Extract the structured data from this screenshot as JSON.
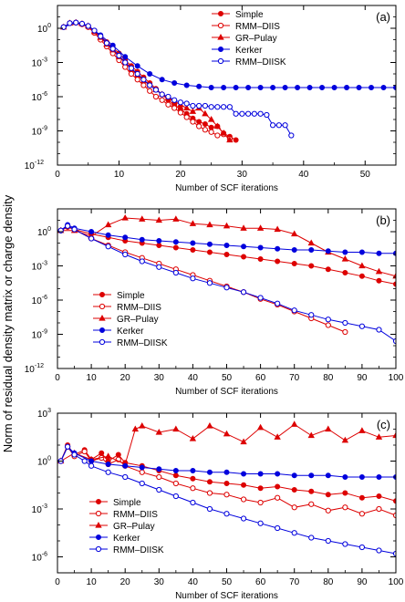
{
  "figure": {
    "shared_ylabel": "Norm of residual density matrix or charge density"
  },
  "chart_data": [
    {
      "type": "line",
      "panel_label": "(a)",
      "xlabel": "Number of SCF iterations",
      "ylabel": "",
      "xlim": [
        0,
        55
      ],
      "ylim_log10": [
        -12,
        2
      ],
      "y_scale": "log",
      "x_ticks": [
        0,
        10,
        20,
        30,
        40,
        50
      ],
      "y_ticks": [
        {
          "exp": 0,
          "label": "10",
          "sup": "0"
        },
        {
          "exp": -3,
          "label": "10",
          "sup": "-3"
        },
        {
          "exp": -6,
          "label": "10",
          "sup": "-6"
        },
        {
          "exp": -9,
          "label": "10",
          "sup": "-9"
        },
        {
          "exp": -12,
          "label": "10",
          "sup": "-12"
        }
      ],
      "legend_position": "top-center",
      "series": [
        {
          "name": "Simple",
          "color": "#dd0000",
          "marker": "filled-circle",
          "x": [
            1,
            2,
            3,
            4,
            5,
            6,
            7,
            8,
            9,
            10,
            11,
            12,
            13,
            14,
            15,
            16,
            17,
            18,
            19,
            20,
            21,
            22,
            23,
            24,
            25,
            26,
            27,
            28,
            29
          ],
          "log10y": [
            0.1,
            0.45,
            0.5,
            0.4,
            0.2,
            -0.2,
            -0.7,
            -1.2,
            -1.7,
            -2.2,
            -2.8,
            -3.3,
            -3.8,
            -4.3,
            -4.8,
            -5.3,
            -5.8,
            -6.3,
            -6.7,
            -7.1,
            -7.5,
            -7.9,
            -8.2,
            -8.4,
            -8.7,
            -8.6,
            -9.2,
            -9.5,
            -9.8
          ]
        },
        {
          "name": "RMM–DIIS",
          "color": "#dd0000",
          "marker": "open-circle",
          "x": [
            1,
            2,
            3,
            4,
            5,
            6,
            7,
            8,
            9,
            10,
            11,
            12,
            13,
            14,
            15,
            16,
            17,
            18,
            19,
            20,
            21,
            22,
            23,
            24,
            25,
            26,
            27,
            28
          ],
          "log10y": [
            0.1,
            0.45,
            0.5,
            0.35,
            0.1,
            -0.4,
            -1.0,
            -1.6,
            -2.2,
            -2.8,
            -3.4,
            -4.0,
            -4.5,
            -5.0,
            -5.5,
            -6.0,
            -6.3,
            -6.7,
            -7.0,
            -7.4,
            -7.8,
            -8.2,
            -8.6,
            -8.9,
            -9.1,
            -9.4,
            -9.3,
            -9.7
          ]
        },
        {
          "name": "GR–Pulay",
          "color": "#dd0000",
          "marker": "filled-triangle",
          "x": [
            1,
            2,
            3,
            4,
            5,
            6,
            7,
            8,
            9,
            10,
            11,
            12,
            13,
            14,
            15,
            16,
            17,
            18,
            19,
            20,
            21,
            22,
            23,
            24,
            25,
            26,
            27,
            28
          ],
          "log10y": [
            0.1,
            0.45,
            0.5,
            0.4,
            0.2,
            -0.3,
            -0.8,
            -1.4,
            -1.9,
            -2.5,
            -3.0,
            -3.6,
            -4.1,
            -4.6,
            -5.0,
            -5.4,
            -5.8,
            -6.1,
            -6.4,
            -6.7,
            -7.0,
            -7.3,
            -7.0,
            -7.5,
            -8.0,
            -8.6,
            -9.2,
            -9.8
          ]
        },
        {
          "name": "Kerker",
          "color": "#0000dd",
          "marker": "filled-circle",
          "x": [
            1,
            3,
            5,
            7,
            9,
            11,
            13,
            15,
            17,
            19,
            21,
            23,
            25,
            27,
            29,
            31,
            33,
            35,
            37,
            39,
            41,
            43,
            45,
            47,
            49,
            51,
            53,
            55
          ],
          "log10y": [
            0.1,
            0.5,
            0.2,
            -0.6,
            -1.5,
            -2.5,
            -3.3,
            -4.0,
            -4.5,
            -4.8,
            -5.0,
            -5.1,
            -5.2,
            -5.2,
            -5.2,
            -5.2,
            -5.2,
            -5.2,
            -5.2,
            -5.2,
            -5.2,
            -5.2,
            -5.2,
            -5.2,
            -5.2,
            -5.2,
            -5.2,
            -5.2
          ]
        },
        {
          "name": "RMM–DIISK",
          "color": "#0000dd",
          "marker": "open-circle",
          "x": [
            1,
            2,
            3,
            4,
            5,
            6,
            7,
            8,
            9,
            10,
            11,
            12,
            13,
            14,
            15,
            16,
            17,
            18,
            19,
            20,
            21,
            22,
            23,
            24,
            25,
            26,
            27,
            28,
            29,
            30,
            31,
            32,
            33,
            34,
            35,
            36,
            37,
            38
          ],
          "log10y": [
            0.1,
            0.45,
            0.5,
            0.4,
            0.2,
            -0.2,
            -0.7,
            -1.3,
            -1.8,
            -2.4,
            -3.0,
            -3.5,
            -4.0,
            -4.5,
            -5.0,
            -5.4,
            -5.8,
            -6.0,
            -6.3,
            -6.5,
            -6.6,
            -6.8,
            -6.8,
            -6.8,
            -6.9,
            -6.9,
            -6.9,
            -6.9,
            -7.5,
            -7.5,
            -7.5,
            -7.5,
            -7.5,
            -7.6,
            -8.5,
            -8.5,
            -8.5,
            -9.4
          ]
        }
      ]
    },
    {
      "type": "line",
      "panel_label": "(b)",
      "xlabel": "Number of SCF iterations",
      "ylabel": "",
      "xlim": [
        0,
        100
      ],
      "ylim_log10": [
        -12,
        2
      ],
      "y_scale": "log",
      "x_ticks": [
        0,
        10,
        20,
        30,
        40,
        50,
        60,
        70,
        80,
        90,
        100
      ],
      "y_ticks": [
        {
          "exp": 0,
          "label": "10",
          "sup": "0"
        },
        {
          "exp": -3,
          "label": "10",
          "sup": "-3"
        },
        {
          "exp": -6,
          "label": "10",
          "sup": "-6"
        },
        {
          "exp": -9,
          "label": "10",
          "sup": "-9"
        },
        {
          "exp": -12,
          "label": "10",
          "sup": "-12"
        }
      ],
      "legend_position": "bottom-left",
      "series": [
        {
          "name": "Simple",
          "color": "#dd0000",
          "marker": "filled-circle",
          "x": [
            1,
            3,
            5,
            10,
            15,
            20,
            25,
            30,
            35,
            40,
            45,
            50,
            55,
            60,
            65,
            70,
            75,
            80,
            85,
            90,
            95,
            100
          ],
          "log10y": [
            0.1,
            0.4,
            0.2,
            -0.2,
            -0.5,
            -0.8,
            -1.0,
            -1.2,
            -1.4,
            -1.6,
            -1.8,
            -2.0,
            -2.2,
            -2.4,
            -2.6,
            -2.8,
            -3.0,
            -3.3,
            -3.6,
            -3.9,
            -4.3,
            -4.6
          ]
        },
        {
          "name": "RMM–DIIS",
          "color": "#dd0000",
          "marker": "open-circle",
          "x": [
            1,
            3,
            5,
            10,
            15,
            20,
            25,
            30,
            35,
            40,
            45,
            50,
            55,
            60,
            65,
            70,
            75,
            80,
            85
          ],
          "log10y": [
            0.1,
            0.5,
            0.2,
            -0.6,
            -1.2,
            -1.8,
            -2.3,
            -2.8,
            -3.3,
            -3.8,
            -4.3,
            -4.8,
            -5.3,
            -5.9,
            -6.4,
            -7.0,
            -7.6,
            -8.2,
            -8.8
          ]
        },
        {
          "name": "GR–Pulay",
          "color": "#dd0000",
          "marker": "filled-triangle",
          "x": [
            1,
            5,
            10,
            15,
            20,
            25,
            30,
            35,
            40,
            45,
            50,
            55,
            60,
            65,
            70,
            75,
            80,
            85,
            90,
            95,
            100
          ],
          "log10y": [
            0.1,
            0.1,
            -0.4,
            0.6,
            1.2,
            1.1,
            1.0,
            1.1,
            0.7,
            0.6,
            0.5,
            0.3,
            0.3,
            0.2,
            -0.2,
            -1.0,
            -1.8,
            -2.4,
            -3.0,
            -3.5,
            -3.9
          ]
        },
        {
          "name": "Kerker",
          "color": "#0000dd",
          "marker": "filled-circle",
          "x": [
            1,
            3,
            5,
            10,
            15,
            20,
            25,
            30,
            35,
            40,
            45,
            50,
            55,
            60,
            65,
            70,
            75,
            80,
            85,
            90,
            95,
            100
          ],
          "log10y": [
            0.1,
            0.6,
            0.3,
            0.0,
            -0.3,
            -0.5,
            -0.7,
            -0.8,
            -0.9,
            -1.0,
            -1.1,
            -1.2,
            -1.3,
            -1.4,
            -1.5,
            -1.6,
            -1.6,
            -1.7,
            -1.8,
            -1.8,
            -1.9,
            -1.9
          ]
        },
        {
          "name": "RMM–DIISK",
          "color": "#0000dd",
          "marker": "open-circle",
          "x": [
            1,
            3,
            5,
            10,
            15,
            20,
            25,
            30,
            35,
            40,
            45,
            50,
            55,
            60,
            65,
            70,
            75,
            80,
            85,
            90,
            95,
            100
          ],
          "log10y": [
            0.1,
            0.5,
            0.2,
            -0.6,
            -1.3,
            -2.0,
            -2.6,
            -3.1,
            -3.6,
            -4.1,
            -4.5,
            -4.9,
            -5.3,
            -5.8,
            -6.3,
            -6.9,
            -7.3,
            -7.7,
            -8.0,
            -8.3,
            -8.6,
            -9.6
          ]
        }
      ]
    },
    {
      "type": "line",
      "panel_label": "(c)",
      "xlabel": "Number of SCF iterations",
      "ylabel": "",
      "xlim": [
        0,
        100
      ],
      "ylim_log10": [
        -7,
        3
      ],
      "y_scale": "log",
      "x_ticks": [
        0,
        10,
        20,
        30,
        40,
        50,
        60,
        70,
        80,
        90,
        100
      ],
      "y_ticks": [
        {
          "exp": 3,
          "label": "10",
          "sup": "3"
        },
        {
          "exp": 0,
          "label": "10",
          "sup": "0"
        },
        {
          "exp": -3,
          "label": "10",
          "sup": "-3"
        },
        {
          "exp": -6,
          "label": "10",
          "sup": "-6"
        }
      ],
      "legend_position": "bottom-left",
      "series": [
        {
          "name": "Simple",
          "color": "#dd0000",
          "marker": "filled-circle",
          "x": [
            1,
            3,
            5,
            8,
            10,
            13,
            15,
            18,
            20,
            25,
            30,
            35,
            40,
            45,
            50,
            55,
            60,
            65,
            70,
            75,
            80,
            85,
            90,
            95,
            100
          ],
          "log10y": [
            0.0,
            1.0,
            0.4,
            0.7,
            0.1,
            0.5,
            0.0,
            0.4,
            -0.1,
            -0.3,
            -0.6,
            -0.9,
            -1.1,
            -1.3,
            -1.4,
            -1.5,
            -1.7,
            -1.6,
            -1.8,
            -1.9,
            -2.1,
            -2.0,
            -2.3,
            -2.2,
            -2.5
          ]
        },
        {
          "name": "RMM–DIIS",
          "color": "#dd0000",
          "marker": "open-circle",
          "x": [
            1,
            3,
            5,
            8,
            10,
            13,
            15,
            18,
            20,
            25,
            30,
            35,
            40,
            45,
            50,
            55,
            60,
            65,
            70,
            75,
            80,
            85,
            90,
            95,
            100
          ],
          "log10y": [
            0.0,
            0.9,
            0.3,
            0.6,
            0.0,
            0.2,
            -0.2,
            0.1,
            -0.3,
            -0.7,
            -1.0,
            -1.4,
            -1.7,
            -2.0,
            -2.1,
            -2.4,
            -2.6,
            -2.3,
            -2.9,
            -2.7,
            -3.1,
            -2.9,
            -3.3,
            -3.0,
            -3.4
          ]
        },
        {
          "name": "GR–Pulay",
          "color": "#dd0000",
          "marker": "filled-triangle",
          "x": [
            1,
            5,
            10,
            15,
            20,
            23,
            25,
            30,
            35,
            40,
            45,
            50,
            55,
            60,
            65,
            70,
            75,
            80,
            85,
            90,
            95,
            100
          ],
          "log10y": [
            0.0,
            0.5,
            0.1,
            0.3,
            -0.2,
            2.0,
            2.2,
            1.8,
            2.0,
            1.4,
            2.2,
            1.7,
            1.2,
            2.1,
            1.5,
            2.3,
            1.6,
            2.0,
            1.3,
            1.9,
            1.5,
            1.6
          ]
        },
        {
          "name": "Kerker",
          "color": "#0000dd",
          "marker": "filled-circle",
          "x": [
            1,
            3,
            5,
            10,
            15,
            20,
            25,
            30,
            35,
            40,
            45,
            50,
            55,
            60,
            65,
            70,
            75,
            80,
            85,
            90,
            95,
            100
          ],
          "log10y": [
            0.0,
            0.9,
            0.5,
            0.0,
            -0.2,
            -0.3,
            -0.4,
            -0.5,
            -0.6,
            -0.6,
            -0.7,
            -0.7,
            -0.8,
            -0.8,
            -0.8,
            -0.9,
            -0.9,
            -0.9,
            -1.0,
            -1.0,
            -1.0,
            -1.0
          ]
        },
        {
          "name": "RMM–DIISK",
          "color": "#0000dd",
          "marker": "open-circle",
          "x": [
            1,
            3,
            5,
            8,
            10,
            15,
            20,
            25,
            30,
            35,
            40,
            45,
            50,
            55,
            60,
            65,
            70,
            75,
            80,
            85,
            90,
            95,
            100
          ],
          "log10y": [
            0.0,
            0.9,
            0.4,
            0.0,
            -0.3,
            -0.7,
            -1.0,
            -1.4,
            -1.8,
            -2.2,
            -2.6,
            -3.0,
            -3.3,
            -3.6,
            -3.9,
            -4.2,
            -4.5,
            -4.8,
            -5.0,
            -5.2,
            -5.4,
            -5.6,
            -5.8
          ]
        }
      ]
    }
  ]
}
